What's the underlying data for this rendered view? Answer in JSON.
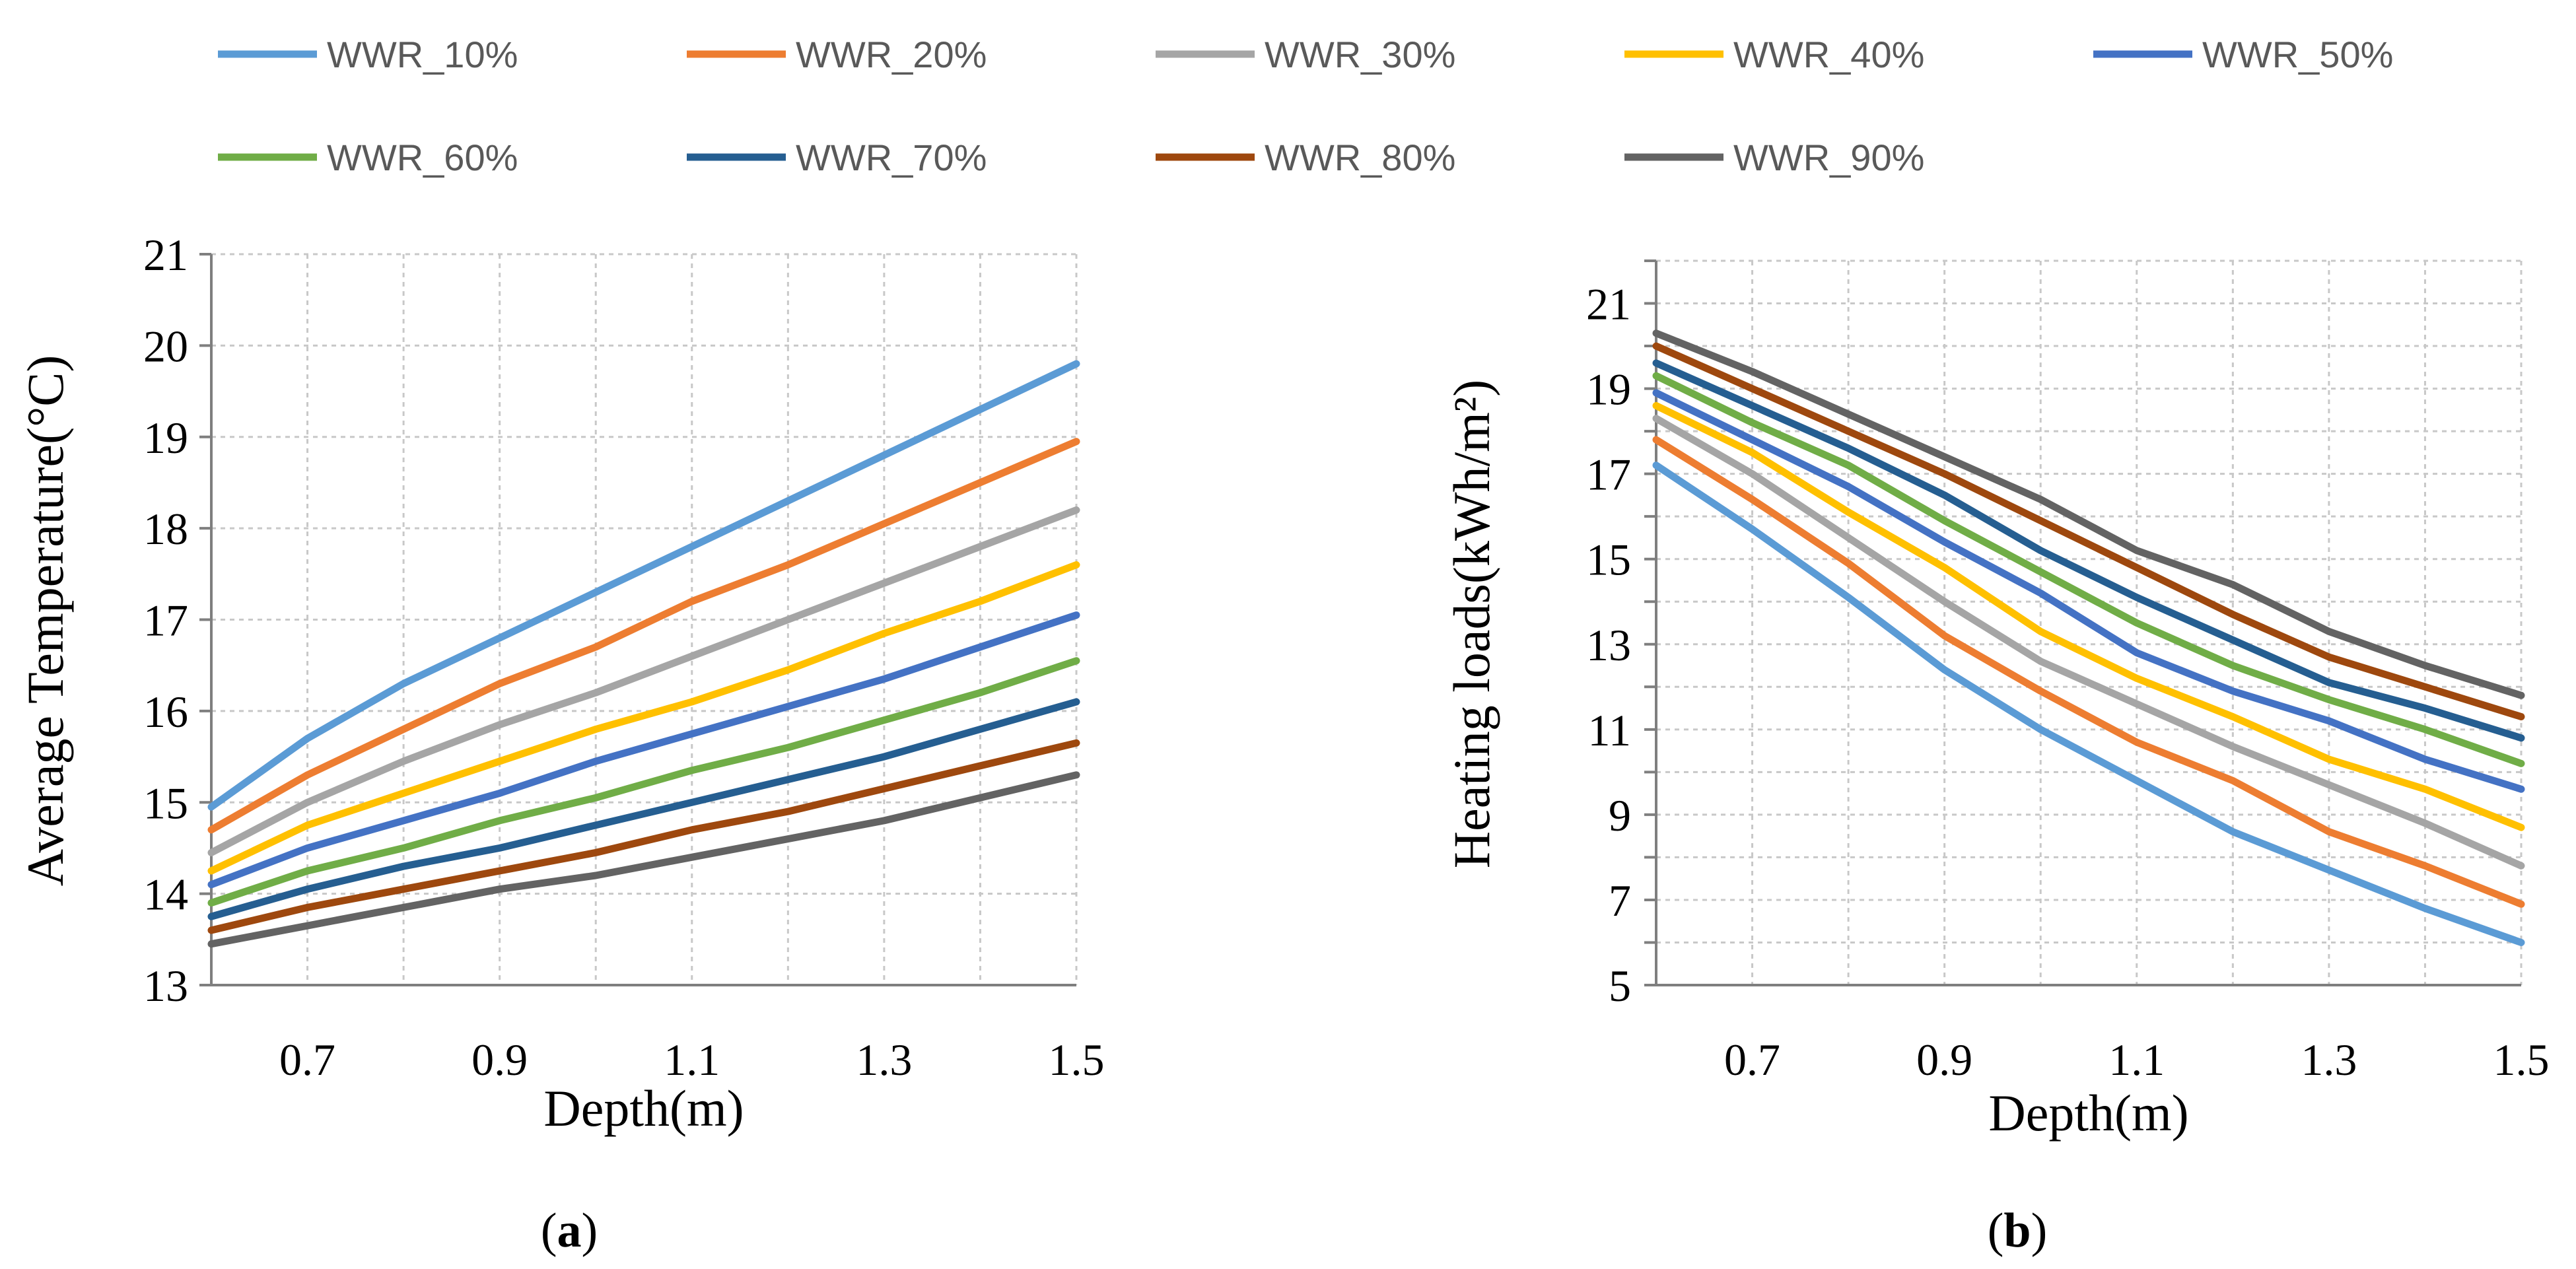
{
  "legend": [
    {
      "name": "WWR_10%",
      "color": "#5b9bd5"
    },
    {
      "name": "WWR_20%",
      "color": "#ed7d31"
    },
    {
      "name": "WWR_30%",
      "color": "#a5a5a5"
    },
    {
      "name": "WWR_40%",
      "color": "#ffc000"
    },
    {
      "name": "WWR_50%",
      "color": "#4472c4"
    },
    {
      "name": "WWR_60%",
      "color": "#70ad47"
    },
    {
      "name": "WWR_70%",
      "color": "#255e91"
    },
    {
      "name": "WWR_80%",
      "color": "#9e480e"
    },
    {
      "name": "WWR_90%",
      "color": "#636363"
    }
  ],
  "chart_data": [
    {
      "type": "line",
      "panel_label": "a",
      "xlabel": "Depth(m)",
      "ylabel": "Average Temperature(°C)",
      "xlim": [
        0.6,
        1.5
      ],
      "ylim": [
        13,
        21
      ],
      "x_ticks": [
        0.7,
        0.9,
        1.1,
        1.3,
        1.5
      ],
      "x_tick_labels": [
        "0.7",
        "0.9",
        "1.1",
        "1.3",
        "1.5"
      ],
      "y_ticks": [
        13,
        14,
        15,
        16,
        17,
        18,
        19,
        20,
        21
      ],
      "y_tick_labels": [
        "13",
        "14",
        "15",
        "16",
        "17",
        "18",
        "19",
        "20",
        "21"
      ],
      "grid": true,
      "x": [
        0.6,
        0.7,
        0.8,
        0.9,
        1.0,
        1.1,
        1.2,
        1.3,
        1.4,
        1.5
      ],
      "series": [
        {
          "name": "WWR_10%",
          "values": [
            14.95,
            15.7,
            16.3,
            16.8,
            17.3,
            17.8,
            18.3,
            18.8,
            19.3,
            19.8
          ]
        },
        {
          "name": "WWR_20%",
          "values": [
            14.7,
            15.3,
            15.8,
            16.3,
            16.7,
            17.2,
            17.6,
            18.05,
            18.5,
            18.95
          ]
        },
        {
          "name": "WWR_30%",
          "values": [
            14.45,
            15.0,
            15.45,
            15.85,
            16.2,
            16.6,
            17.0,
            17.4,
            17.8,
            18.2
          ]
        },
        {
          "name": "WWR_40%",
          "values": [
            14.25,
            14.75,
            15.1,
            15.45,
            15.8,
            16.1,
            16.45,
            16.85,
            17.2,
            17.6
          ]
        },
        {
          "name": "WWR_50%",
          "values": [
            14.1,
            14.5,
            14.8,
            15.1,
            15.45,
            15.75,
            16.05,
            16.35,
            16.7,
            17.05
          ]
        },
        {
          "name": "WWR_60%",
          "values": [
            13.9,
            14.25,
            14.5,
            14.8,
            15.05,
            15.35,
            15.6,
            15.9,
            16.2,
            16.55
          ]
        },
        {
          "name": "WWR_70%",
          "values": [
            13.75,
            14.05,
            14.3,
            14.5,
            14.75,
            15.0,
            15.25,
            15.5,
            15.8,
            16.1
          ]
        },
        {
          "name": "WWR_80%",
          "values": [
            13.6,
            13.85,
            14.05,
            14.25,
            14.45,
            14.7,
            14.9,
            15.15,
            15.4,
            15.65
          ]
        },
        {
          "name": "WWR_90%",
          "values": [
            13.45,
            13.65,
            13.85,
            14.05,
            14.2,
            14.4,
            14.6,
            14.8,
            15.05,
            15.3
          ]
        }
      ]
    },
    {
      "type": "line",
      "panel_label": "b",
      "xlabel": "Depth(m)",
      "ylabel": "Heating loads(kWh/m²)",
      "xlim": [
        0.6,
        1.5
      ],
      "ylim": [
        5,
        22
      ],
      "x_ticks": [
        0.7,
        0.9,
        1.1,
        1.3,
        1.5
      ],
      "x_tick_labels": [
        "0.7",
        "0.9",
        "1.1",
        "1.3",
        "1.5"
      ],
      "y_ticks": [
        5,
        7,
        9,
        11,
        13,
        15,
        17,
        19,
        21
      ],
      "y_tick_labels": [
        "5",
        "7",
        "9",
        "11",
        "13",
        "15",
        "17",
        "19",
        "21"
      ],
      "grid": true,
      "x": [
        0.6,
        0.7,
        0.8,
        0.9,
        1.0,
        1.1,
        1.2,
        1.3,
        1.4,
        1.5
      ],
      "series": [
        {
          "name": "WWR_10%",
          "values": [
            17.2,
            15.7,
            14.1,
            12.4,
            11.0,
            9.8,
            8.6,
            7.7,
            6.8,
            6.0
          ]
        },
        {
          "name": "WWR_20%",
          "values": [
            17.8,
            16.4,
            14.9,
            13.2,
            11.9,
            10.7,
            9.8,
            8.6,
            7.8,
            6.9
          ]
        },
        {
          "name": "WWR_30%",
          "values": [
            18.3,
            17.0,
            15.5,
            14.0,
            12.6,
            11.6,
            10.6,
            9.7,
            8.8,
            7.8
          ]
        },
        {
          "name": "WWR_40%",
          "values": [
            18.6,
            17.5,
            16.1,
            14.8,
            13.3,
            12.2,
            11.3,
            10.3,
            9.6,
            8.7
          ]
        },
        {
          "name": "WWR_50%",
          "values": [
            18.9,
            17.8,
            16.7,
            15.4,
            14.2,
            12.8,
            11.9,
            11.2,
            10.3,
            9.6
          ]
        },
        {
          "name": "WWR_60%",
          "values": [
            19.3,
            18.2,
            17.2,
            15.9,
            14.7,
            13.5,
            12.5,
            11.7,
            11.0,
            10.2
          ]
        },
        {
          "name": "WWR_70%",
          "values": [
            19.6,
            18.6,
            17.6,
            16.5,
            15.2,
            14.1,
            13.1,
            12.1,
            11.5,
            10.8
          ]
        },
        {
          "name": "WWR_80%",
          "values": [
            20.0,
            19.0,
            18.0,
            17.0,
            15.9,
            14.8,
            13.7,
            12.7,
            12.0,
            11.3
          ]
        },
        {
          "name": "WWR_90%",
          "values": [
            20.3,
            19.4,
            18.4,
            17.4,
            16.4,
            15.2,
            14.4,
            13.3,
            12.5,
            11.8
          ]
        }
      ]
    }
  ]
}
